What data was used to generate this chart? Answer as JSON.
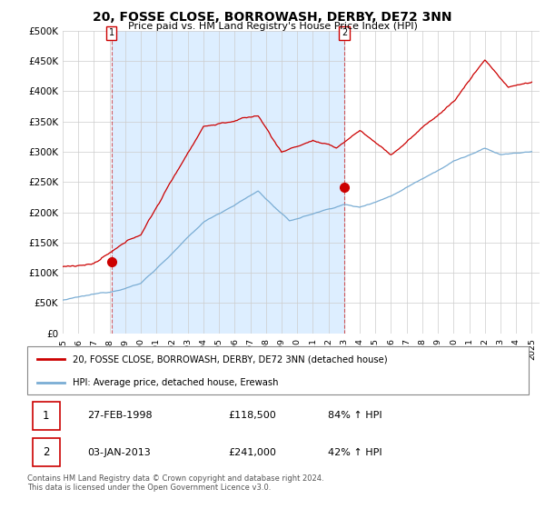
{
  "title": "20, FOSSE CLOSE, BORROWASH, DERBY, DE72 3NN",
  "subtitle": "Price paid vs. HM Land Registry's House Price Index (HPI)",
  "ylabel_ticks": [
    "£0",
    "£50K",
    "£100K",
    "£150K",
    "£200K",
    "£250K",
    "£300K",
    "£350K",
    "£400K",
    "£450K",
    "£500K"
  ],
  "ytick_values": [
    0,
    50000,
    100000,
    150000,
    200000,
    250000,
    300000,
    350000,
    400000,
    450000,
    500000
  ],
  "ylim": [
    0,
    500000
  ],
  "xlim_start": 1995.0,
  "xlim_end": 2025.5,
  "red_line_color": "#cc0000",
  "blue_line_color": "#7aadd4",
  "shade_color": "#ddeeff",
  "marker1_date": 1998.12,
  "marker1_value": 118500,
  "marker2_date": 2013.01,
  "marker2_value": 241000,
  "legend_label_red": "20, FOSSE CLOSE, BORROWASH, DERBY, DE72 3NN (detached house)",
  "legend_label_blue": "HPI: Average price, detached house, Erewash",
  "table_row1": [
    "1",
    "27-FEB-1998",
    "£118,500",
    "84% ↑ HPI"
  ],
  "table_row2": [
    "2",
    "03-JAN-2013",
    "£241,000",
    "42% ↑ HPI"
  ],
  "footer": "Contains HM Land Registry data © Crown copyright and database right 2024.\nThis data is licensed under the Open Government Licence v3.0.",
  "bg_color": "#ffffff",
  "grid_color": "#cccccc"
}
